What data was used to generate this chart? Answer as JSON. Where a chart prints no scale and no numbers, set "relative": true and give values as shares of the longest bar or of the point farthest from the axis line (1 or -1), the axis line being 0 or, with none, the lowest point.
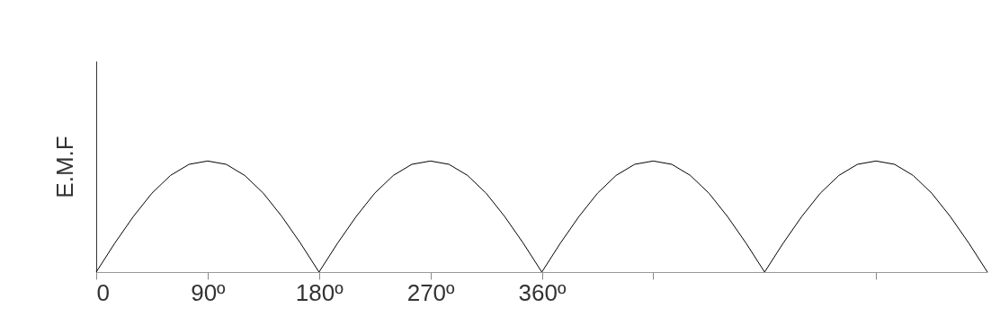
{
  "chart_data": {
    "type": "line",
    "relative": true,
    "ylabel": "E.M.F",
    "color": "#000000",
    "x": [
      0,
      15,
      30,
      45,
      60,
      75,
      90,
      105,
      120,
      135,
      150,
      165,
      180,
      195,
      210,
      225,
      240,
      255,
      270,
      285,
      300,
      315,
      330,
      345,
      360,
      375,
      390,
      405,
      420,
      435,
      450,
      465,
      480,
      495,
      510,
      525,
      540,
      555,
      570,
      585,
      600,
      615,
      630,
      645,
      660,
      675,
      690,
      705,
      720
    ],
    "values": [
      0,
      0.26,
      0.5,
      0.71,
      0.87,
      0.97,
      1,
      0.97,
      0.87,
      0.71,
      0.5,
      0.26,
      0,
      0.26,
      0.5,
      0.71,
      0.87,
      0.97,
      1,
      0.97,
      0.87,
      0.71,
      0.5,
      0.26,
      0,
      0.26,
      0.5,
      0.71,
      0.87,
      0.97,
      1,
      0.97,
      0.87,
      0.71,
      0.5,
      0.26,
      0,
      0.26,
      0.5,
      0.71,
      0.87,
      0.97,
      1,
      0.97,
      0.87,
      0.71,
      0.5,
      0.26,
      0
    ],
    "xlim": [
      0,
      720
    ],
    "xticks": [
      0,
      {
        "value": 90,
        "label": "90º"
      },
      {
        "value": 180,
        "label": "180º"
      },
      {
        "value": 270,
        "label": "270º"
      },
      {
        "value": 360,
        "label": "360º"
      },
      {
        "value": 450,
        "label": null
      },
      {
        "value": 630,
        "label": null
      }
    ],
    "grid": false,
    "marker": "none",
    "line_style": "solid"
  }
}
